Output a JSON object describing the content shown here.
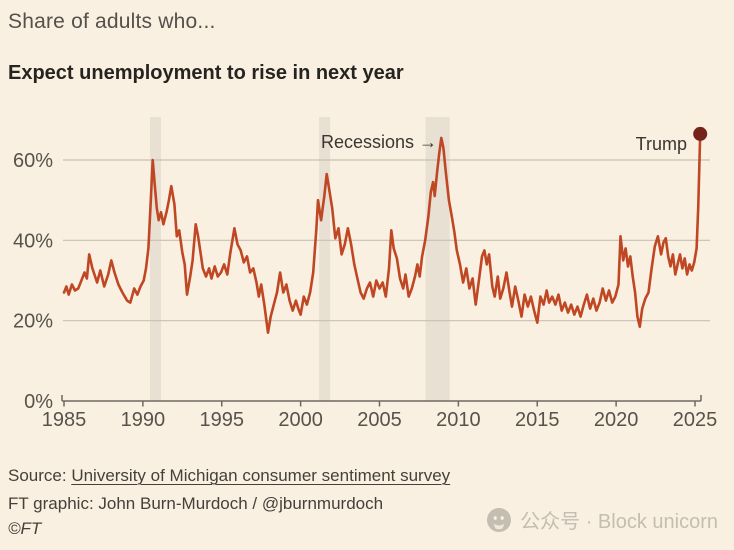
{
  "header": {
    "title": "Share of adults who...",
    "subtitle": "Expect unemployment to rise in next year"
  },
  "annotations": {
    "recessions": "Recessions →",
    "trump": "Trump"
  },
  "footer": {
    "source_prefix": "Source: ",
    "source_link": "University of Michigan consumer sentiment survey",
    "credit": "FT graphic: John Burn-Murdoch / @jburnmurdoch",
    "copyright": "©FT"
  },
  "watermark": {
    "icon": "wechat-icon",
    "text": "公众号 · Block unicorn"
  },
  "colors": {
    "background": "#faf0e1",
    "line": "#bf4724",
    "end_dot": "#74231a",
    "recession_band": "#e8e0d3",
    "gridline": "#c8c1b3",
    "axis": "#6e6960",
    "tick_label": "#57524a"
  },
  "chart_data": {
    "type": "line",
    "title": "Expect unemployment to rise in next year",
    "xlabel": "",
    "ylabel": "Share of adults (%)",
    "unit": "%",
    "xlim": [
      1985,
      2025.5
    ],
    "ylim": [
      0,
      70
    ],
    "grid": "horizontal",
    "legend_position": "none",
    "x_ticks": [
      1985,
      1990,
      1995,
      2000,
      2005,
      2010,
      2015,
      2020,
      2025
    ],
    "y_ticks": [
      {
        "value": 0,
        "label": "0%"
      },
      {
        "value": 20,
        "label": "20%"
      },
      {
        "value": 40,
        "label": "40%"
      },
      {
        "value": 60,
        "label": "60%"
      }
    ],
    "recession_bands": [
      [
        1990.45,
        1991.15
      ],
      [
        2001.17,
        2001.87
      ],
      [
        2007.92,
        2009.45
      ]
    ],
    "end_marker": {
      "x": 2025.33,
      "y": 66.5,
      "label": "Trump"
    },
    "series": [
      {
        "name": "Expect unemployment to rise in next year",
        "points": [
          [
            1985.0,
            27
          ],
          [
            1985.15,
            28.5
          ],
          [
            1985.3,
            26.5
          ],
          [
            1985.5,
            29
          ],
          [
            1985.7,
            27.5
          ],
          [
            1985.9,
            28
          ],
          [
            1986.1,
            30
          ],
          [
            1986.3,
            32
          ],
          [
            1986.45,
            30.5
          ],
          [
            1986.6,
            36.5
          ],
          [
            1986.8,
            33
          ],
          [
            1987.1,
            29.5
          ],
          [
            1987.3,
            32.5
          ],
          [
            1987.55,
            28.5
          ],
          [
            1987.8,
            31.5
          ],
          [
            1988.0,
            35
          ],
          [
            1988.2,
            32
          ],
          [
            1988.45,
            29
          ],
          [
            1988.7,
            27
          ],
          [
            1989.0,
            25
          ],
          [
            1989.2,
            24.5
          ],
          [
            1989.45,
            28
          ],
          [
            1989.65,
            26.5
          ],
          [
            1989.85,
            28.5
          ],
          [
            1990.05,
            30
          ],
          [
            1990.2,
            33
          ],
          [
            1990.35,
            38
          ],
          [
            1990.5,
            50
          ],
          [
            1990.62,
            60
          ],
          [
            1990.75,
            54
          ],
          [
            1990.88,
            48
          ],
          [
            1991.0,
            45
          ],
          [
            1991.15,
            47
          ],
          [
            1991.3,
            44
          ],
          [
            1991.5,
            47
          ],
          [
            1991.65,
            50
          ],
          [
            1991.8,
            53.5
          ],
          [
            1992.0,
            49
          ],
          [
            1992.15,
            41
          ],
          [
            1992.3,
            42.5
          ],
          [
            1992.5,
            37
          ],
          [
            1992.65,
            34
          ],
          [
            1992.8,
            26.5
          ],
          [
            1993.0,
            31
          ],
          [
            1993.15,
            35
          ],
          [
            1993.35,
            44
          ],
          [
            1993.5,
            41
          ],
          [
            1993.65,
            37
          ],
          [
            1993.8,
            33
          ],
          [
            1994.0,
            31
          ],
          [
            1994.2,
            33
          ],
          [
            1994.35,
            30.5
          ],
          [
            1994.55,
            33.5
          ],
          [
            1994.75,
            31
          ],
          [
            1994.95,
            32
          ],
          [
            1995.15,
            34
          ],
          [
            1995.35,
            31.5
          ],
          [
            1995.55,
            37
          ],
          [
            1995.8,
            43
          ],
          [
            1996.0,
            39
          ],
          [
            1996.2,
            37.5
          ],
          [
            1996.4,
            34.5
          ],
          [
            1996.6,
            36
          ],
          [
            1996.8,
            32
          ],
          [
            1997.0,
            33
          ],
          [
            1997.2,
            29.5
          ],
          [
            1997.35,
            26
          ],
          [
            1997.5,
            29
          ],
          [
            1997.7,
            24
          ],
          [
            1997.93,
            17
          ],
          [
            1998.1,
            21
          ],
          [
            1998.3,
            24
          ],
          [
            1998.5,
            27
          ],
          [
            1998.7,
            32
          ],
          [
            1998.9,
            27
          ],
          [
            1999.1,
            29
          ],
          [
            1999.3,
            25
          ],
          [
            1999.5,
            22.5
          ],
          [
            1999.7,
            25
          ],
          [
            1999.85,
            23
          ],
          [
            2000.0,
            21.5
          ],
          [
            2000.2,
            26
          ],
          [
            2000.4,
            24
          ],
          [
            2000.6,
            27
          ],
          [
            2000.8,
            32
          ],
          [
            2001.0,
            43
          ],
          [
            2001.1,
            50
          ],
          [
            2001.3,
            45
          ],
          [
            2001.5,
            51
          ],
          [
            2001.65,
            56.5
          ],
          [
            2001.8,
            53
          ],
          [
            2002.0,
            48
          ],
          [
            2002.2,
            40.5
          ],
          [
            2002.4,
            43
          ],
          [
            2002.6,
            36.5
          ],
          [
            2002.8,
            39
          ],
          [
            2003.0,
            43
          ],
          [
            2003.2,
            39
          ],
          [
            2003.4,
            34
          ],
          [
            2003.6,
            30.5
          ],
          [
            2003.8,
            27
          ],
          [
            2004.0,
            25.5
          ],
          [
            2004.2,
            28
          ],
          [
            2004.4,
            29.5
          ],
          [
            2004.6,
            26
          ],
          [
            2004.8,
            30
          ],
          [
            2005.0,
            28
          ],
          [
            2005.2,
            29.5
          ],
          [
            2005.4,
            26
          ],
          [
            2005.6,
            33
          ],
          [
            2005.75,
            42.5
          ],
          [
            2005.9,
            38
          ],
          [
            2006.1,
            35.5
          ],
          [
            2006.3,
            30.5
          ],
          [
            2006.5,
            28
          ],
          [
            2006.65,
            31.5
          ],
          [
            2006.85,
            26
          ],
          [
            2007.05,
            28
          ],
          [
            2007.25,
            31
          ],
          [
            2007.4,
            34
          ],
          [
            2007.55,
            31
          ],
          [
            2007.7,
            36
          ],
          [
            2007.9,
            40
          ],
          [
            2008.1,
            46
          ],
          [
            2008.25,
            52
          ],
          [
            2008.4,
            54.5
          ],
          [
            2008.5,
            51
          ],
          [
            2008.65,
            57
          ],
          [
            2008.8,
            62
          ],
          [
            2008.92,
            65.5
          ],
          [
            2009.05,
            63
          ],
          [
            2009.2,
            57
          ],
          [
            2009.4,
            50
          ],
          [
            2009.6,
            45.5
          ],
          [
            2009.75,
            42
          ],
          [
            2009.9,
            37.5
          ],
          [
            2010.1,
            34
          ],
          [
            2010.3,
            29.5
          ],
          [
            2010.5,
            33
          ],
          [
            2010.7,
            28
          ],
          [
            2010.9,
            30.5
          ],
          [
            2011.1,
            24
          ],
          [
            2011.3,
            30
          ],
          [
            2011.5,
            36
          ],
          [
            2011.65,
            37.5
          ],
          [
            2011.8,
            34
          ],
          [
            2011.95,
            36.5
          ],
          [
            2012.15,
            28.5
          ],
          [
            2012.3,
            26
          ],
          [
            2012.5,
            31
          ],
          [
            2012.65,
            25.5
          ],
          [
            2012.85,
            28
          ],
          [
            2013.05,
            32
          ],
          [
            2013.25,
            27
          ],
          [
            2013.4,
            23.5
          ],
          [
            2013.6,
            28.5
          ],
          [
            2013.8,
            25
          ],
          [
            2014.0,
            21
          ],
          [
            2014.2,
            26.5
          ],
          [
            2014.4,
            23.5
          ],
          [
            2014.6,
            26
          ],
          [
            2014.8,
            22.5
          ],
          [
            2015.0,
            19.5
          ],
          [
            2015.2,
            26
          ],
          [
            2015.4,
            24
          ],
          [
            2015.6,
            27.5
          ],
          [
            2015.75,
            24.5
          ],
          [
            2015.95,
            26
          ],
          [
            2016.15,
            24
          ],
          [
            2016.35,
            26.5
          ],
          [
            2016.55,
            22.5
          ],
          [
            2016.75,
            24.5
          ],
          [
            2016.95,
            22
          ],
          [
            2017.15,
            24
          ],
          [
            2017.35,
            21.5
          ],
          [
            2017.55,
            23.5
          ],
          [
            2017.75,
            21
          ],
          [
            2017.95,
            24
          ],
          [
            2018.15,
            26.5
          ],
          [
            2018.35,
            23
          ],
          [
            2018.55,
            25.5
          ],
          [
            2018.75,
            22.5
          ],
          [
            2018.95,
            24.5
          ],
          [
            2019.15,
            28
          ],
          [
            2019.35,
            25
          ],
          [
            2019.55,
            27.5
          ],
          [
            2019.75,
            24.5
          ],
          [
            2019.95,
            26
          ],
          [
            2020.15,
            29
          ],
          [
            2020.28,
            41
          ],
          [
            2020.45,
            35
          ],
          [
            2020.6,
            38
          ],
          [
            2020.75,
            33.5
          ],
          [
            2020.9,
            36
          ],
          [
            2021.05,
            31
          ],
          [
            2021.2,
            27
          ],
          [
            2021.35,
            21
          ],
          [
            2021.5,
            18.5
          ],
          [
            2021.65,
            23
          ],
          [
            2021.85,
            25.5
          ],
          [
            2022.05,
            27
          ],
          [
            2022.25,
            33
          ],
          [
            2022.45,
            38.5
          ],
          [
            2022.65,
            41
          ],
          [
            2022.85,
            36.5
          ],
          [
            2023.0,
            39.5
          ],
          [
            2023.15,
            40.5
          ],
          [
            2023.3,
            36
          ],
          [
            2023.45,
            33.5
          ],
          [
            2023.6,
            36.5
          ],
          [
            2023.75,
            31.5
          ],
          [
            2023.9,
            34
          ],
          [
            2024.05,
            36.5
          ],
          [
            2024.2,
            33
          ],
          [
            2024.35,
            35.5
          ],
          [
            2024.5,
            31.5
          ],
          [
            2024.65,
            34
          ],
          [
            2024.8,
            32.5
          ],
          [
            2024.95,
            34.5
          ],
          [
            2025.1,
            38
          ],
          [
            2025.2,
            48
          ],
          [
            2025.33,
            66.5
          ]
        ]
      }
    ]
  }
}
